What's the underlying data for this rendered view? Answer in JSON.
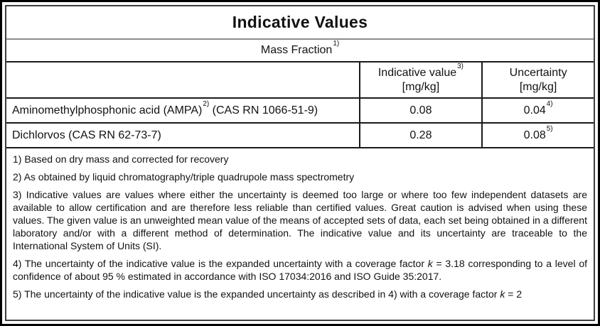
{
  "table": {
    "title": "Indicative Values",
    "subtitle": {
      "text": "Mass Fraction",
      "sup": "1)"
    },
    "columns": {
      "indicative": {
        "label": "Indicative value",
        "sup": "3)",
        "unit": "[mg/kg]"
      },
      "uncertainty": {
        "label": "Uncertainty",
        "unit": "[mg/kg]"
      }
    },
    "rows": [
      {
        "substance_name": "Aminomethylphosphonic acid (AMPA)",
        "substance_sup": "2)",
        "substance_cas": " (CAS RN 1066-51-9)",
        "value": "0.08",
        "uncertainty": "0.04",
        "uncertainty_sup": "4)"
      },
      {
        "substance_name": "Dichlorvos (CAS RN 62-73-7)",
        "substance_sup": "",
        "substance_cas": "",
        "value": "0.28",
        "uncertainty": "0.08",
        "uncertainty_sup": "5)"
      }
    ]
  },
  "footnotes": {
    "fn1": "1) Based on dry mass and corrected for recovery",
    "fn2": "2) As obtained by liquid chromatography/triple quadrupole mass spectrometry",
    "fn3": "3) Indicative values are values where either the uncertainty is deemed too large or where too few independent datasets are available to allow certification and are therefore less reliable than certified values. Great caution is advised when using these values. The given value is an unweighted mean value of the means of accepted sets of data, each set being obtained in a different laboratory and/or with a different method of determination. The indicative value and its uncertainty are traceable to the International System of Units (SI).",
    "fn4_pre": "4) The uncertainty of the indicative value is the expanded uncertainty with a coverage factor ",
    "fn4_k": "k",
    "fn4_post": " = 3.18 corresponding to a level of confidence of about 95 % estimated in accordance with ISO 17034:2016 and ISO Guide 35:2017.",
    "fn5_pre": "5) The uncertainty of the indicative value is the expanded uncertainty as described in 4) with a coverage factor ",
    "fn5_k": "k",
    "fn5_post": " = 2"
  }
}
